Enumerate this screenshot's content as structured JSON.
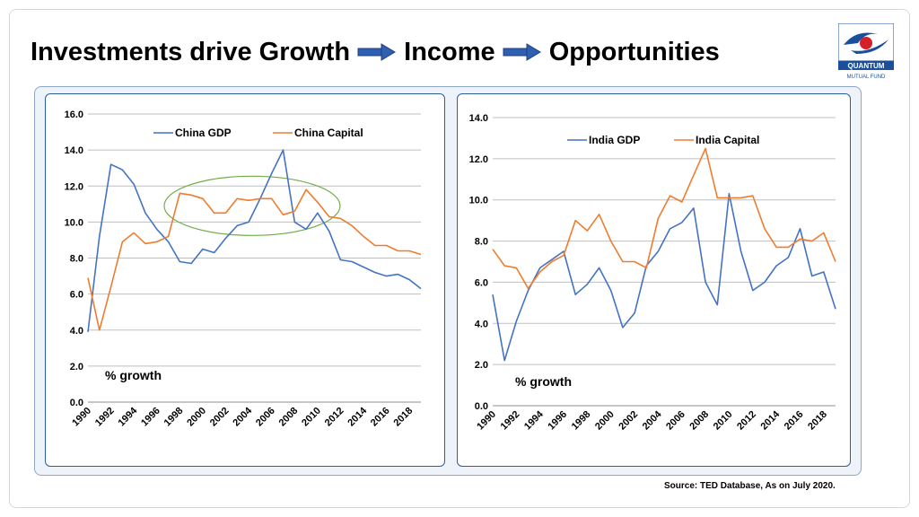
{
  "header": {
    "title_part1": "Investments drive Growth",
    "title_part2": "Income",
    "title_part3": "Opportunities",
    "arrow_icon": "right-arrow-icon",
    "arrow_color": "#2f5fb0"
  },
  "logo": {
    "name": "QUANTUM",
    "subtitle": "MUTUAL FUND",
    "color": "#1b4f9c",
    "accent": "#d42027"
  },
  "source": "Source: TED Database, As on July 2020.",
  "colors": {
    "gdp": "#4472c4",
    "capital": "#ed7d31",
    "gridline": "#bfbfbf",
    "ellipse": "#70ad47"
  },
  "chart_data": [
    {
      "type": "line",
      "x": [
        1990,
        1991,
        1992,
        1993,
        1994,
        1995,
        1996,
        1997,
        1998,
        1999,
        2000,
        2001,
        2002,
        2003,
        2004,
        2005,
        2006,
        2007,
        2008,
        2009,
        2010,
        2011,
        2012,
        2013,
        2014,
        2015,
        2016,
        2017,
        2018,
        2019
      ],
      "x_tick_labels": [
        "1990",
        "1992",
        "1994",
        "1996",
        "1998",
        "2000",
        "2002",
        "2004",
        "2006",
        "2008",
        "2010",
        "2012",
        "2014",
        "2016",
        "2018"
      ],
      "series": [
        {
          "name": "China GDP",
          "values": [
            3.9,
            9.2,
            13.2,
            12.9,
            12.1,
            10.5,
            9.6,
            8.9,
            7.8,
            7.7,
            8.5,
            8.3,
            9.1,
            9.8,
            10.0,
            11.3,
            12.7,
            14.0,
            10.0,
            9.6,
            10.5,
            9.5,
            7.9,
            7.8,
            7.5,
            7.2,
            7.0,
            7.1,
            6.8,
            6.3
          ]
        },
        {
          "name": "China Capital",
          "values": [
            6.9,
            4.0,
            6.4,
            8.9,
            9.4,
            8.8,
            8.9,
            9.2,
            11.6,
            11.5,
            11.3,
            10.5,
            10.5,
            11.3,
            11.2,
            11.3,
            11.3,
            10.4,
            10.6,
            11.8,
            11.1,
            10.3,
            10.2,
            9.8,
            9.2,
            8.7,
            8.7,
            8.4,
            8.4,
            8.2
          ]
        }
      ],
      "ylim": [
        0,
        16
      ],
      "y_tick_labels": [
        "0.0",
        "2.0",
        "4.0",
        "6.0",
        "8.0",
        "10.0",
        "12.0",
        "14.0",
        "16.0"
      ],
      "annotation": "% growth",
      "legend": "top",
      "grid": true
    },
    {
      "type": "line",
      "x": [
        1990,
        1991,
        1992,
        1993,
        1994,
        1995,
        1996,
        1997,
        1998,
        1999,
        2000,
        2001,
        2002,
        2003,
        2004,
        2005,
        2006,
        2007,
        2008,
        2009,
        2010,
        2011,
        2012,
        2013,
        2014,
        2015,
        2016,
        2017,
        2018,
        2019
      ],
      "x_tick_labels": [
        "1990",
        "1992",
        "1994",
        "1996",
        "1998",
        "2000",
        "2002",
        "2004",
        "2006",
        "2008",
        "2010",
        "2012",
        "2014",
        "2016",
        "2018"
      ],
      "series": [
        {
          "name": "India GDP",
          "values": [
            5.4,
            2.2,
            4.1,
            5.6,
            6.7,
            7.1,
            7.5,
            5.4,
            5.9,
            6.7,
            5.6,
            3.8,
            4.5,
            6.8,
            7.5,
            8.6,
            8.9,
            9.6,
            6.0,
            4.9,
            10.3,
            7.5,
            5.6,
            6.0,
            6.8,
            7.2,
            8.6,
            6.3,
            6.5,
            4.7
          ]
        },
        {
          "name": "India Capital",
          "values": [
            7.6,
            6.8,
            6.7,
            5.7,
            6.5,
            7.0,
            7.3,
            9.0,
            8.5,
            9.3,
            8.0,
            7.0,
            7.0,
            6.7,
            9.1,
            10.2,
            9.9,
            11.2,
            12.5,
            10.1,
            10.1,
            10.1,
            10.2,
            8.6,
            7.7,
            7.7,
            8.1,
            8.0,
            8.4,
            7.0
          ]
        }
      ],
      "ylim": [
        0,
        14
      ],
      "y_tick_labels": [
        "0.0",
        "2.0",
        "4.0",
        "6.0",
        "8.0",
        "10.0",
        "12.0",
        "14.0"
      ],
      "annotation": "% growth",
      "legend": "top",
      "grid": true
    }
  ]
}
